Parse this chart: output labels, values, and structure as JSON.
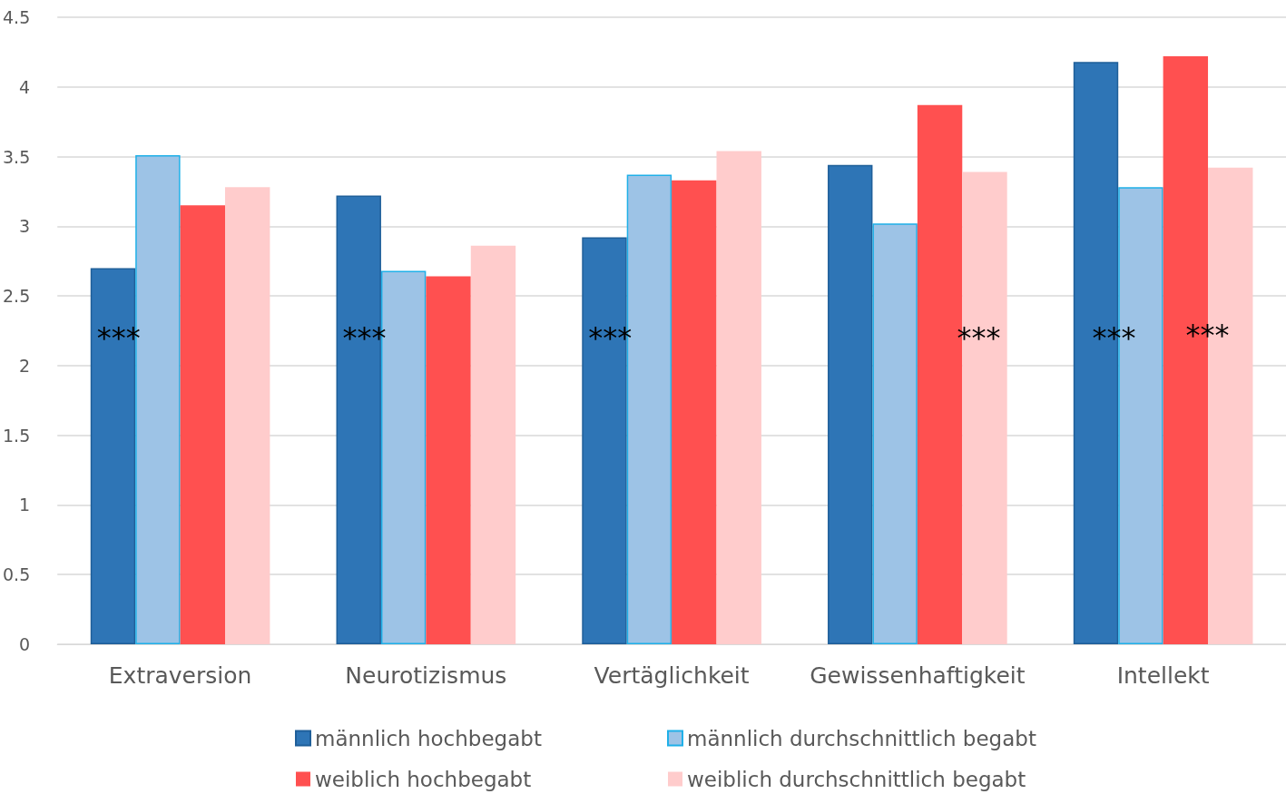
{
  "chart_data": {
    "type": "bar",
    "categories": [
      "Extraversion",
      "Neurotizismus",
      "Vertäglichkeit",
      "Gewissenhaftigkeit",
      "Intellekt"
    ],
    "series": [
      {
        "name": "männlich hochbegabt",
        "color": "#2e75b6",
        "values": [
          2.7,
          3.22,
          2.92,
          3.44,
          4.18
        ]
      },
      {
        "name": "männlich durchschnittlich begabt",
        "color": "#9dc3e6",
        "values": [
          3.51,
          2.68,
          3.37,
          3.02,
          3.28
        ]
      },
      {
        "name": "weiblich hochbegabt",
        "color": "#ff5050",
        "values": [
          3.15,
          2.64,
          3.33,
          3.87,
          4.22
        ]
      },
      {
        "name": "weiblich durchschnittlich begabt",
        "color": "#ffcccc",
        "values": [
          3.28,
          2.86,
          3.54,
          3.39,
          3.42
        ]
      }
    ],
    "ylim": [
      0,
      4.5
    ],
    "yticks": [
      0,
      0.5,
      1,
      1.5,
      2,
      2.5,
      3,
      3.5,
      4,
      4.5
    ],
    "grid": "y",
    "legend": "bottom",
    "annotations": [
      {
        "text": "***",
        "x": "Extraversion",
        "y": 2.2
      },
      {
        "text": "***",
        "x": "Neurotizismus",
        "y": 2.2
      },
      {
        "text": "***",
        "x": "Vertäglichkeit",
        "y": 2.2
      },
      {
        "text": "***",
        "x": "Gewissenhaftigkeit",
        "y": 2.2
      },
      {
        "text": "***",
        "x": "Intellekt",
        "y": 2.2
      },
      {
        "text": "***",
        "x": "Intellekt",
        "y": 2.22
      }
    ]
  }
}
